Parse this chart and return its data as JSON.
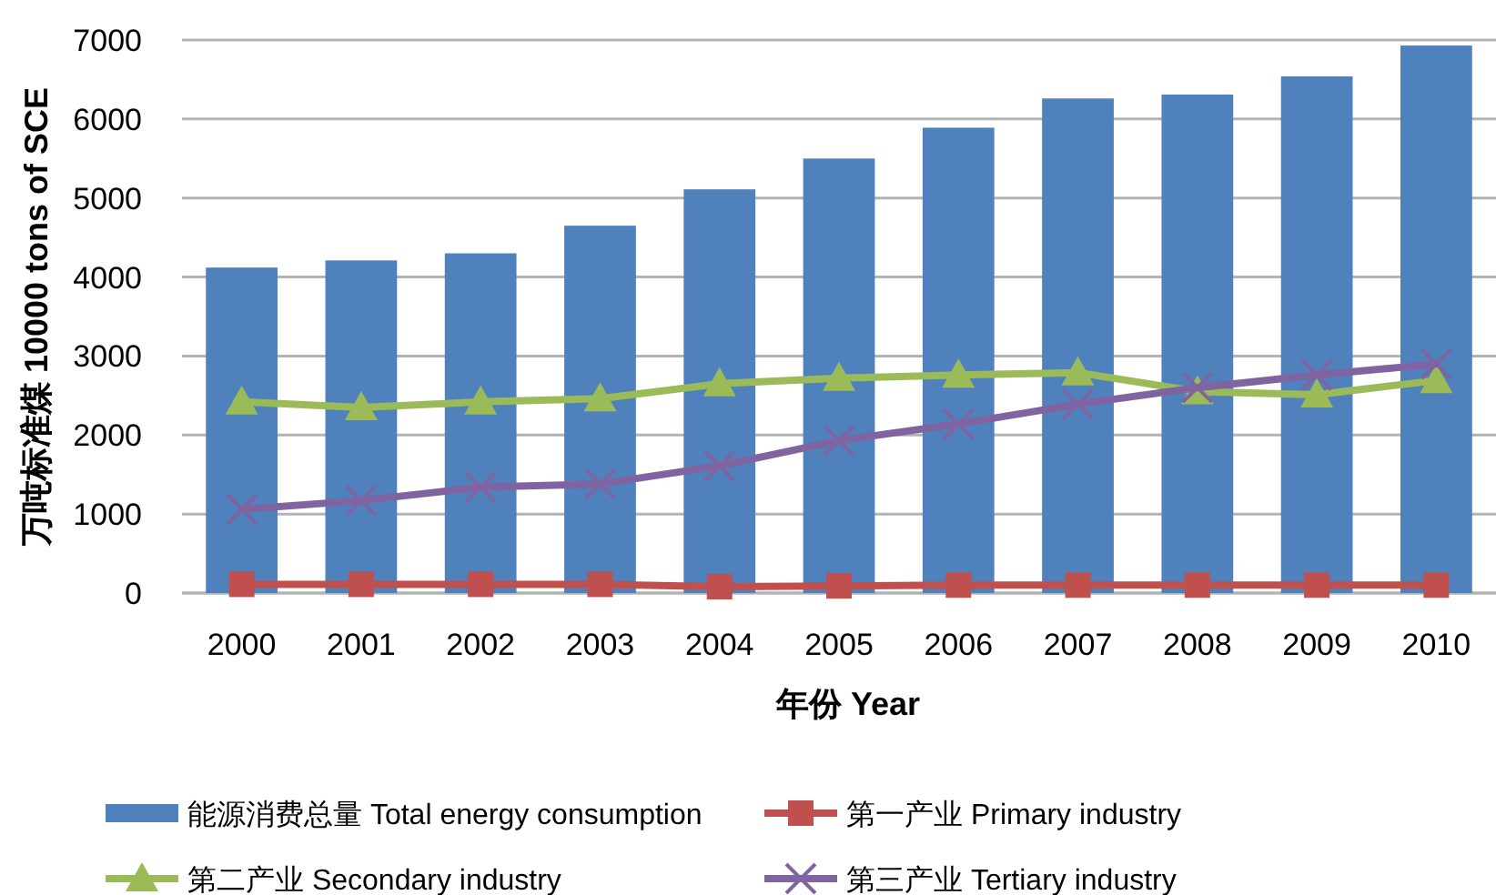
{
  "chart_data": {
    "type": "bar",
    "xlabel": "年份 Year",
    "ylabel": "万吨标准煤 10000 tons of SCE",
    "categories": [
      "2000",
      "2001",
      "2002",
      "2003",
      "2004",
      "2005",
      "2006",
      "2007",
      "2008",
      "2009",
      "2010"
    ],
    "series": [
      {
        "name": "能源消费总量 Total energy consumption",
        "color": "#4f81bd",
        "values": [
          4120,
          4210,
          4300,
          4650,
          5110,
          5500,
          5890,
          6260,
          6310,
          6540,
          6930
        ]
      },
      {
        "name": "第一产业 Primary industry",
        "type": "line",
        "marker": "square",
        "color": "#c0504d",
        "values": [
          110,
          110,
          110,
          110,
          80,
          90,
          100,
          100,
          100,
          100,
          100
        ]
      },
      {
        "name": "第二产业 Secondary industry",
        "type": "line",
        "marker": "triangle",
        "color": "#9bbb59",
        "values": [
          2420,
          2350,
          2420,
          2460,
          2650,
          2720,
          2760,
          2790,
          2550,
          2510,
          2690
        ]
      },
      {
        "name": "第三产业 Tertiary industry",
        "type": "line",
        "marker": "cross",
        "color": "#8064a2",
        "values": [
          1060,
          1170,
          1340,
          1380,
          1610,
          1930,
          2140,
          2390,
          2600,
          2760,
          2900
        ]
      }
    ],
    "ylim": [
      0,
      7000
    ],
    "yticks": [
      0,
      1000,
      2000,
      3000,
      4000,
      5000,
      6000,
      7000
    ],
    "grid": "y",
    "legend": "bottom"
  }
}
